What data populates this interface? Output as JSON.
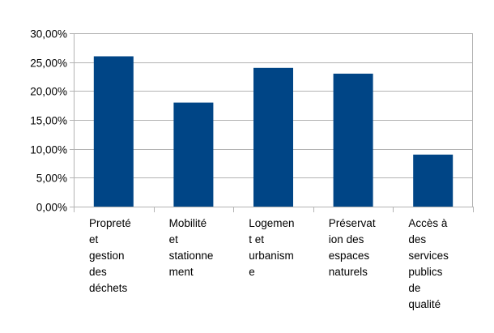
{
  "chart_data": {
    "type": "bar",
    "categories": [
      "Propreté et gestion des déchets",
      "Mobilité et stationnement",
      "Logement et urbanisme",
      "Préservation des espaces naturels",
      "Accès à des services publics de qualité"
    ],
    "category_label_lines": [
      [
        "Propreté",
        "et",
        "gestion",
        "des",
        "déchets"
      ],
      [
        "Mobilité",
        "et",
        "stationne",
        "ment"
      ],
      [
        "Logemen",
        "t et",
        "urbanism",
        "e"
      ],
      [
        "Préservat",
        "ion des",
        "espaces",
        "naturels"
      ],
      [
        "Accès à",
        "des",
        "services",
        "publics",
        "de",
        "qualité"
      ]
    ],
    "values": [
      26,
      18,
      24,
      23,
      9
    ],
    "y_tick_labels": [
      "0,00%",
      "5,00%",
      "10,00%",
      "15,00%",
      "20,00%",
      "25,00%",
      "30,00%"
    ],
    "ylim": [
      0,
      30
    ],
    "y_step": 5,
    "grid": true,
    "legend": "none",
    "colors": {
      "bar": "#004586",
      "grid": "#b3b3b3",
      "axis": "#b3b3b3"
    }
  }
}
